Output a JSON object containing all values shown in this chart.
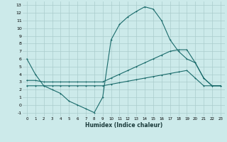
{
  "xlabel": "Humidex (Indice chaleur)",
  "background_color": "#cceaea",
  "grid_color": "#aacccc",
  "line_color": "#1a6b6b",
  "xlim": [
    -0.5,
    23.5
  ],
  "ylim": [
    -1.5,
    13.5
  ],
  "xticks": [
    0,
    1,
    2,
    3,
    4,
    5,
    6,
    7,
    8,
    9,
    10,
    11,
    12,
    13,
    14,
    15,
    16,
    17,
    18,
    19,
    20,
    21,
    22,
    23
  ],
  "yticks": [
    -1,
    0,
    1,
    2,
    3,
    4,
    5,
    6,
    7,
    8,
    9,
    10,
    11,
    12,
    13
  ],
  "line1_x": [
    0,
    1,
    2,
    3,
    4,
    5,
    6,
    7,
    8,
    9,
    10,
    11,
    12,
    13,
    14,
    15,
    16,
    17,
    18,
    19,
    20,
    21,
    22,
    23
  ],
  "line1_y": [
    6,
    4,
    2.5,
    2,
    1.5,
    0.5,
    0,
    -0.5,
    -1,
    1,
    8.5,
    10.5,
    11.5,
    12.2,
    12.8,
    12.5,
    11,
    8.5,
    7,
    6,
    5.5,
    3.5,
    2.5,
    2.5
  ],
  "line2_x": [
    0,
    1,
    2,
    3,
    4,
    5,
    6,
    7,
    8,
    9,
    10,
    11,
    12,
    13,
    14,
    15,
    16,
    17,
    18,
    19,
    20,
    21,
    22,
    23
  ],
  "line2_y": [
    3.2,
    3.2,
    3.0,
    3.0,
    3.0,
    3.0,
    3.0,
    3.0,
    3.0,
    3.0,
    3.5,
    4.0,
    4.5,
    5.0,
    5.5,
    6.0,
    6.5,
    7.0,
    7.2,
    7.2,
    5.5,
    3.5,
    2.5,
    2.5
  ],
  "line3_x": [
    0,
    1,
    2,
    3,
    4,
    5,
    6,
    7,
    8,
    9,
    10,
    11,
    12,
    13,
    14,
    15,
    16,
    17,
    18,
    19,
    20,
    21,
    22,
    23
  ],
  "line3_y": [
    2.5,
    2.5,
    2.5,
    2.5,
    2.5,
    2.5,
    2.5,
    2.5,
    2.5,
    2.5,
    2.7,
    2.9,
    3.1,
    3.3,
    3.5,
    3.7,
    3.9,
    4.1,
    4.3,
    4.5,
    3.5,
    2.5,
    2.5,
    2.5
  ]
}
